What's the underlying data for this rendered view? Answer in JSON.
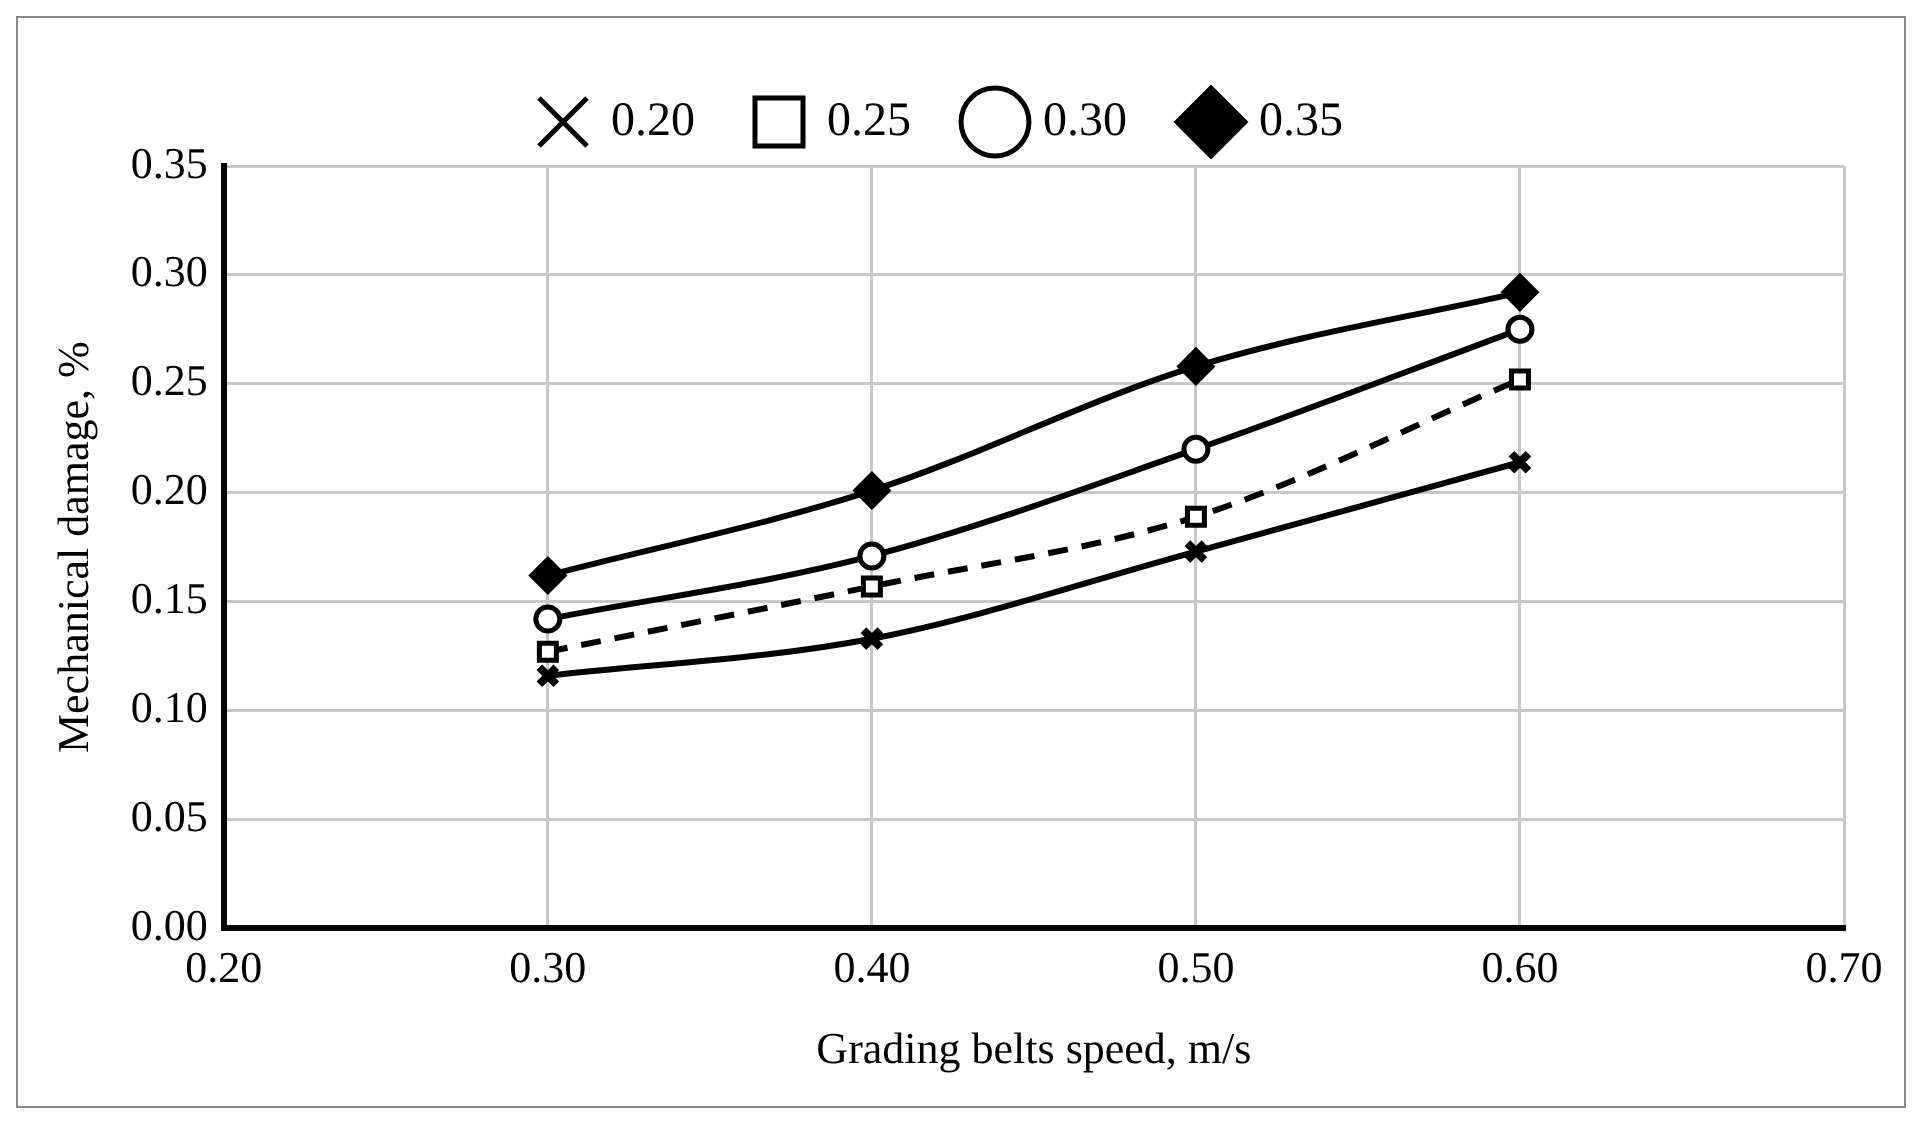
{
  "chart_data": {
    "type": "line",
    "xlabel": "Grading belts speed, m/s",
    "ylabel": "Mechanical damage, %",
    "x": [
      0.3,
      0.4,
      0.5,
      0.6
    ],
    "xlim": [
      0.2,
      0.7
    ],
    "xticks": [
      {
        "value": 0.2,
        "label": "0.20"
      },
      {
        "value": 0.3,
        "label": "0.30"
      },
      {
        "value": 0.4,
        "label": "0.40"
      },
      {
        "value": 0.5,
        "label": "0.50"
      },
      {
        "value": 0.6,
        "label": "0.60"
      },
      {
        "value": 0.7,
        "label": "0.70"
      }
    ],
    "ylim": [
      0,
      0.35
    ],
    "yticks": [
      {
        "value": 0,
        "label": "0.00"
      },
      {
        "value": 0.05,
        "label": "0.05"
      },
      {
        "value": 0.1,
        "label": "0.10"
      },
      {
        "value": 0.15,
        "label": "0.15"
      },
      {
        "value": 0.2,
        "label": "0.20"
      },
      {
        "value": 0.25,
        "label": "0.25"
      },
      {
        "value": 0.3,
        "label": "0.30"
      },
      {
        "value": 0.35,
        "label": "0.35"
      }
    ],
    "grid": true,
    "legend": "top",
    "series": [
      {
        "name": "0.20",
        "color": "#000000",
        "marker": "cross",
        "line_style": "solid",
        "values": [
          0.116,
          0.133,
          0.173,
          0.214
        ]
      },
      {
        "name": "0.25",
        "color": "#000000",
        "marker": "square",
        "line_style": "dashed",
        "values": [
          0.127,
          0.157,
          0.189,
          0.252
        ]
      },
      {
        "name": "0.30",
        "color": "#000000",
        "marker": "circle",
        "line_style": "solid",
        "values": [
          0.142,
          0.171,
          0.22,
          0.275
        ]
      },
      {
        "name": "0.35",
        "color": "#000000",
        "marker": "diamond",
        "line_style": "solid",
        "values": [
          0.162,
          0.201,
          0.258,
          0.292
        ]
      }
    ]
  }
}
